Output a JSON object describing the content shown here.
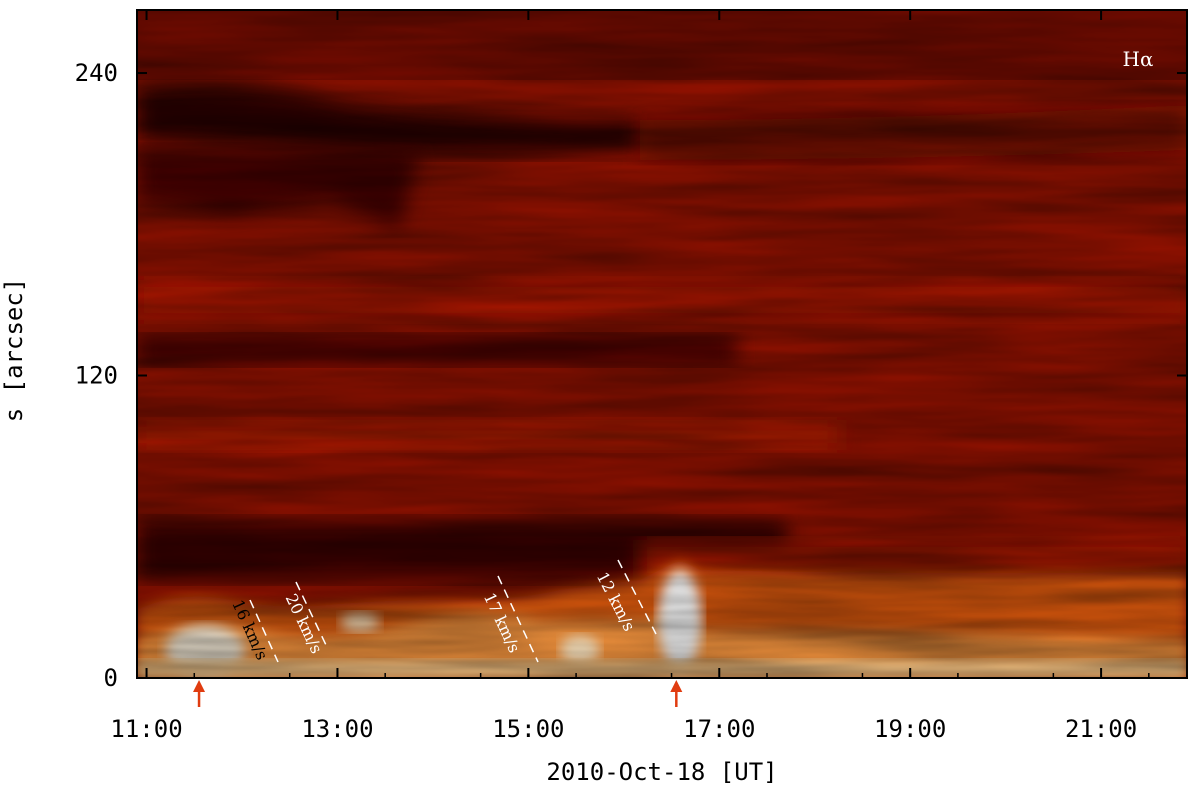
{
  "chart_data": {
    "type": "heatmap",
    "panel_label": "Hα",
    "xlabel": "2010-Oct-18 [UT]",
    "ylabel": "s [arcsec]",
    "xlim_hours": [
      10.9,
      21.9
    ],
    "ylim_arcsec": [
      0,
      265
    ],
    "x_ticks": [
      {
        "value": 11,
        "label": "11:00"
      },
      {
        "value": 13,
        "label": "13:00"
      },
      {
        "value": 15,
        "label": "15:00"
      },
      {
        "value": 17,
        "label": "17:00"
      },
      {
        "value": 19,
        "label": "19:00"
      },
      {
        "value": 21,
        "label": "21:00"
      }
    ],
    "y_ticks": [
      {
        "value": 0,
        "label": "0"
      },
      {
        "value": 120,
        "label": "120"
      },
      {
        "value": 240,
        "label": "240"
      }
    ],
    "colormap": [
      "#3a0000",
      "#7a0a00",
      "#b41a00",
      "#e86a10",
      "#ffc060",
      "#ffffff"
    ],
    "velocity_annotations": [
      {
        "label": "16 km/s",
        "text_color": "#000000"
      },
      {
        "label": "20 km/s",
        "text_color": "#ffffff"
      },
      {
        "label": "17 km/s",
        "text_color": "#ffffff"
      },
      {
        "label": "12 km/s",
        "text_color": "#ffffff"
      }
    ],
    "event_markers_hours": [
      11.55,
      16.55
    ],
    "marker_color": "#e03c10",
    "grid": false
  }
}
